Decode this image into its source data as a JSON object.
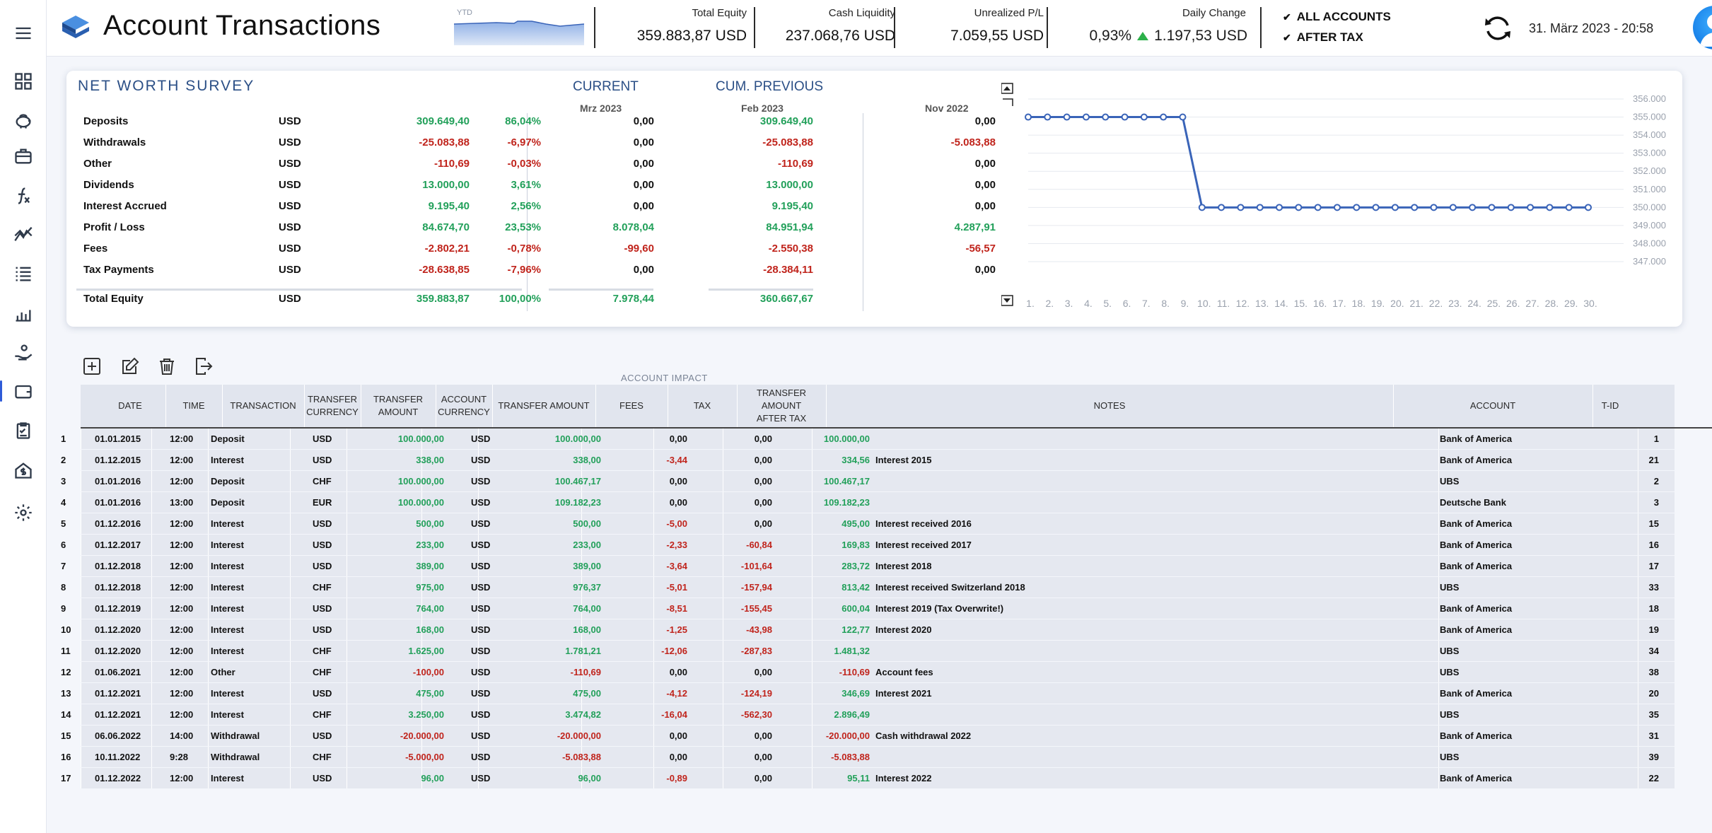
{
  "header": {
    "title": "Account Transactions",
    "ytd_label": "YTD",
    "metrics": [
      {
        "label": "Total Equity",
        "value": "359.883,87 USD"
      },
      {
        "label": "Cash Liquidity",
        "value": "237.068,76 USD"
      },
      {
        "label": "Unrealized P/L",
        "value": "7.059,55 USD"
      }
    ],
    "daily_change": {
      "label": "Daily Change",
      "percent": "0,93%",
      "value": "1.197,53 USD"
    },
    "options": [
      "ALL ACCOUNTS",
      "AFTER TAX"
    ],
    "datetime": "31. März 2023  -  20:58"
  },
  "colors": {
    "accent": "#2e5bd8",
    "positive": "#22a05a",
    "negative": "#c0241c",
    "title_blue": "#2b4f86"
  },
  "sidebar": {
    "icons": [
      "menu-icon",
      "dashboard-icon",
      "piggy-bank-icon",
      "briefcase-icon",
      "function-icon",
      "chart-trend-icon",
      "list-icon",
      "bar-chart-icon",
      "hand-coin-icon",
      "wallet-icon",
      "clipboard-icon",
      "house-dollar-icon",
      "gear-icon"
    ],
    "active": "wallet-icon"
  },
  "survey": {
    "title": "NET WORTH SURVEY",
    "current_label": "CURRENT",
    "previous_label": "CUM. PREVIOUS",
    "periods": [
      "Mrz 2023",
      "Feb 2023",
      "Nov 2022"
    ],
    "rows": [
      {
        "label": "Deposits",
        "cur": "USD",
        "value": "309.649,40",
        "pct": "86,04%",
        "current": "0,00",
        "previous": "309.649,40",
        "nov": "0,00",
        "sign": "pos",
        "csign": "blk",
        "psign": "pos",
        "nsign": "blk"
      },
      {
        "label": "Withdrawals",
        "cur": "USD",
        "value": "-25.083,88",
        "pct": "-6,97%",
        "current": "0,00",
        "previous": "-25.083,88",
        "nov": "-5.083,88",
        "sign": "neg",
        "csign": "blk",
        "psign": "neg",
        "nsign": "neg"
      },
      {
        "label": "Other",
        "cur": "USD",
        "value": "-110,69",
        "pct": "-0,03%",
        "current": "0,00",
        "previous": "-110,69",
        "nov": "0,00",
        "sign": "neg",
        "csign": "blk",
        "psign": "neg",
        "nsign": "blk"
      },
      {
        "label": "Dividends",
        "cur": "USD",
        "value": "13.000,00",
        "pct": "3,61%",
        "current": "0,00",
        "previous": "13.000,00",
        "nov": "0,00",
        "sign": "pos",
        "csign": "blk",
        "psign": "pos",
        "nsign": "blk"
      },
      {
        "label": "Interest Accrued",
        "cur": "USD",
        "value": "9.195,40",
        "pct": "2,56%",
        "current": "0,00",
        "previous": "9.195,40",
        "nov": "0,00",
        "sign": "pos",
        "csign": "blk",
        "psign": "pos",
        "nsign": "blk"
      },
      {
        "label": "Profit / Loss",
        "cur": "USD",
        "value": "84.674,70",
        "pct": "23,53%",
        "current": "8.078,04",
        "previous": "84.951,94",
        "nov": "4.287,91",
        "sign": "pos",
        "csign": "pos",
        "psign": "pos",
        "nsign": "pos"
      },
      {
        "label": "Fees",
        "cur": "USD",
        "value": "-2.802,21",
        "pct": "-0,78%",
        "current": "-99,60",
        "previous": "-2.550,38",
        "nov": "-56,57",
        "sign": "neg",
        "csign": "neg",
        "psign": "neg",
        "nsign": "neg"
      },
      {
        "label": "Tax Payments",
        "cur": "USD",
        "value": "-28.638,85",
        "pct": "-7,96%",
        "current": "0,00",
        "previous": "-28.384,11",
        "nov": "0,00",
        "sign": "neg",
        "csign": "blk",
        "psign": "neg",
        "nsign": "blk"
      }
    ],
    "total": {
      "label": "Total Equity",
      "cur": "USD",
      "value": "359.883,87",
      "pct": "100,00%",
      "current": "7.978,44",
      "previous": "360.667,67"
    }
  },
  "chart_data": {
    "type": "line",
    "x": [
      "1.",
      "2.",
      "3.",
      "4.",
      "5.",
      "6.",
      "7.",
      "8.",
      "9.",
      "10.",
      "11.",
      "12.",
      "13.",
      "14.",
      "15.",
      "16.",
      "17.",
      "18.",
      "19.",
      "20.",
      "21.",
      "22.",
      "23.",
      "24.",
      "25.",
      "26.",
      "27.",
      "28.",
      "29.",
      "30."
    ],
    "values": [
      355000,
      355000,
      355000,
      355000,
      355000,
      355000,
      355000,
      355000,
      355000,
      350000,
      350000,
      350000,
      350000,
      350000,
      350000,
      350000,
      350000,
      350000,
      350000,
      350000,
      350000,
      350000,
      350000,
      350000,
      350000,
      350000,
      350000,
      350000,
      350000,
      350000
    ],
    "y_ticks": [
      "356.000",
      "355.000",
      "354.000",
      "353.000",
      "352.000",
      "351.000",
      "350.000",
      "349.000",
      "348.000",
      "347.000"
    ],
    "ylim": [
      347000,
      356000
    ],
    "grid": true,
    "color": "#3a64b8"
  },
  "toolbar": {
    "account_impact": "ACCOUNT IMPACT",
    "icons": [
      "add-icon",
      "edit-icon",
      "delete-icon",
      "export-icon"
    ]
  },
  "table": {
    "headers": [
      "DATE",
      "TIME",
      "TRANSACTION",
      "TRANSFER CURRENCY",
      "TRANSFER AMOUNT",
      "ACCOUNT CURRENCY",
      "TRANSFER AMOUNT",
      "FEES",
      "TAX",
      "TRANSFER AMOUNT AFTER TAX",
      "NOTES",
      "ACCOUNT",
      "T-ID"
    ],
    "rows": [
      [
        "1",
        "01.01.2015",
        "12:00",
        "Deposit",
        "USD",
        "100.000,00",
        "USD",
        "100.000,00",
        "0,00",
        "0,00",
        "100.000,00",
        "",
        "Bank of America",
        "1"
      ],
      [
        "2",
        "01.12.2015",
        "12:00",
        "Interest",
        "USD",
        "338,00",
        "USD",
        "338,00",
        "-3,44",
        "0,00",
        "334,56",
        "Interest 2015",
        "Bank of America",
        "21"
      ],
      [
        "3",
        "01.01.2016",
        "12:00",
        "Deposit",
        "CHF",
        "100.000,00",
        "USD",
        "100.467,17",
        "0,00",
        "0,00",
        "100.467,17",
        "",
        "UBS",
        "2"
      ],
      [
        "4",
        "01.01.2016",
        "13:00",
        "Deposit",
        "EUR",
        "100.000,00",
        "USD",
        "109.182,23",
        "0,00",
        "0,00",
        "109.182,23",
        "",
        "Deutsche Bank",
        "3"
      ],
      [
        "5",
        "01.12.2016",
        "12:00",
        "Interest",
        "USD",
        "500,00",
        "USD",
        "500,00",
        "-5,00",
        "0,00",
        "495,00",
        "Interest received 2016",
        "Bank of America",
        "15"
      ],
      [
        "6",
        "01.12.2017",
        "12:00",
        "Interest",
        "USD",
        "233,00",
        "USD",
        "233,00",
        "-2,33",
        "-60,84",
        "169,83",
        "Interest received 2017",
        "Bank of America",
        "16"
      ],
      [
        "7",
        "01.12.2018",
        "12:00",
        "Interest",
        "USD",
        "389,00",
        "USD",
        "389,00",
        "-3,64",
        "-101,64",
        "283,72",
        "Interest 2018",
        "Bank of America",
        "17"
      ],
      [
        "8",
        "01.12.2018",
        "12:00",
        "Interest",
        "CHF",
        "975,00",
        "USD",
        "976,37",
        "-5,01",
        "-157,94",
        "813,42",
        "Interest received Switzerland 2018",
        "UBS",
        "33"
      ],
      [
        "9",
        "01.12.2019",
        "12:00",
        "Interest",
        "USD",
        "764,00",
        "USD",
        "764,00",
        "-8,51",
        "-155,45",
        "600,04",
        "Interest 2019 (Tax Overwrite!)",
        "Bank of America",
        "18"
      ],
      [
        "10",
        "01.12.2020",
        "12:00",
        "Interest",
        "USD",
        "168,00",
        "USD",
        "168,00",
        "-1,25",
        "-43,98",
        "122,77",
        "Interest 2020",
        "Bank of America",
        "19"
      ],
      [
        "11",
        "01.12.2020",
        "12:00",
        "Interest",
        "CHF",
        "1.625,00",
        "USD",
        "1.781,21",
        "-12,06",
        "-287,83",
        "1.481,32",
        "",
        "UBS",
        "34"
      ],
      [
        "12",
        "01.06.2021",
        "12:00",
        "Other",
        "CHF",
        "-100,00",
        "USD",
        "-110,69",
        "0,00",
        "0,00",
        "-110,69",
        "Account fees",
        "UBS",
        "38"
      ],
      [
        "13",
        "01.12.2021",
        "12:00",
        "Interest",
        "USD",
        "475,00",
        "USD",
        "475,00",
        "-4,12",
        "-124,19",
        "346,69",
        "Interest 2021",
        "Bank of America",
        "20"
      ],
      [
        "14",
        "01.12.2021",
        "12:00",
        "Interest",
        "CHF",
        "3.250,00",
        "USD",
        "3.474,82",
        "-16,04",
        "-562,30",
        "2.896,49",
        "",
        "UBS",
        "35"
      ],
      [
        "15",
        "06.06.2022",
        "14:00",
        "Withdrawal",
        "USD",
        "-20.000,00",
        "USD",
        "-20.000,00",
        "0,00",
        "0,00",
        "-20.000,00",
        "Cash withdrawal 2022",
        "Bank of America",
        "31"
      ],
      [
        "16",
        "10.11.2022",
        "9:28",
        "Withdrawal",
        "CHF",
        "-5.000,00",
        "USD",
        "-5.083,88",
        "0,00",
        "0,00",
        "-5.083,88",
        "",
        "UBS",
        "39"
      ],
      [
        "17",
        "01.12.2022",
        "12:00",
        "Interest",
        "USD",
        "96,00",
        "USD",
        "96,00",
        "-0,89",
        "0,00",
        "95,11",
        "Interest 2022",
        "Bank of America",
        "22"
      ]
    ]
  }
}
